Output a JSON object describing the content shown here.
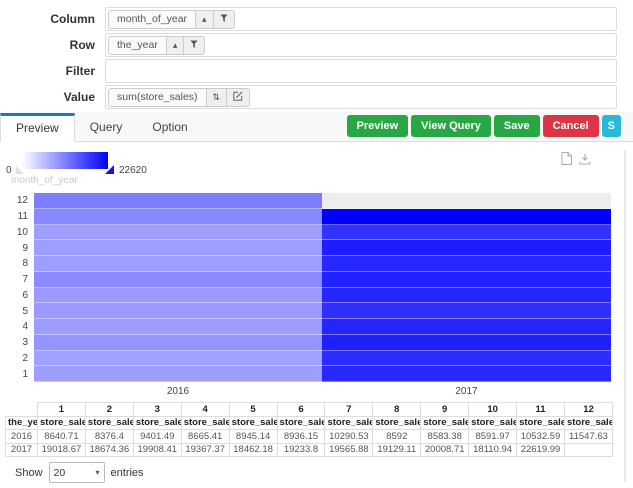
{
  "colors": {
    "accent_tab": "#1779c2",
    "green": "#28a745",
    "red": "#dc3545",
    "cyan": "#29b9d8",
    "empty_cell": "#ededed"
  },
  "form": {
    "fields": [
      {
        "label": "Column",
        "pill": "month_of_year"
      },
      {
        "label": "Row",
        "pill": "the_year"
      },
      {
        "label": "Filter",
        "pill": ""
      },
      {
        "label": "Value",
        "pill": "sum(store_sales)"
      }
    ]
  },
  "tabs": [
    {
      "label": "Preview",
      "active": true
    },
    {
      "label": "Query",
      "active": false
    },
    {
      "label": "Option",
      "active": false
    }
  ],
  "toolbar": {
    "buttons": [
      {
        "label": "Preview",
        "color": "#28a745"
      },
      {
        "label": "View Query",
        "color": "#28a745"
      },
      {
        "label": "Save",
        "color": "#28a745"
      },
      {
        "label": "Cancel",
        "color": "#dc3545"
      },
      {
        "label": "S",
        "color": "#29b9d8"
      }
    ]
  },
  "chart_data": {
    "type": "heatmap",
    "legend_label": "month_of_year",
    "colormap": {
      "min": 0,
      "max": 22620,
      "min_label": "0",
      "max_label": "22620",
      "start_color": "#ffffff",
      "end_color": "#0000ff"
    },
    "x_categories": [
      "2016",
      "2017"
    ],
    "y_categories": [
      1,
      2,
      3,
      4,
      5,
      6,
      7,
      8,
      9,
      10,
      11,
      12
    ],
    "series": [
      {
        "name": "2016",
        "values": [
          8640.71,
          8376.4,
          9401.49,
          8665.41,
          8945.14,
          8936.15,
          10290.53,
          8592,
          8583.38,
          8591.97,
          10532.59,
          11547.63
        ]
      },
      {
        "name": "2017",
        "values": [
          19018.67,
          18674.36,
          19908.41,
          19367.37,
          18462.18,
          19233.8,
          19565.88,
          19129.11,
          20008.71,
          18110.94,
          22619.99,
          null
        ]
      }
    ]
  },
  "table": {
    "row_header": "the_year",
    "col_headers": [
      "1",
      "2",
      "3",
      "4",
      "5",
      "6",
      "7",
      "8",
      "9",
      "10",
      "11",
      "12"
    ],
    "sub_header": "store_sales",
    "rows": [
      {
        "year": "2016",
        "values": [
          "8640.71",
          "8376.4",
          "9401.49",
          "8665.41",
          "8945.14",
          "8936.15",
          "10290.53",
          "8592",
          "8583.38",
          "8591.97",
          "10532.59",
          "11547.63"
        ]
      },
      {
        "year": "2017",
        "values": [
          "19018.67",
          "18674.36",
          "19908.41",
          "19367.37",
          "18462.18",
          "19233.8",
          "19565.88",
          "19129.11",
          "20008.71",
          "18110.94",
          "22619.99",
          ""
        ]
      }
    ]
  },
  "pagination": {
    "show_label": "Show",
    "page_size": "20",
    "entries_label": "entries"
  }
}
